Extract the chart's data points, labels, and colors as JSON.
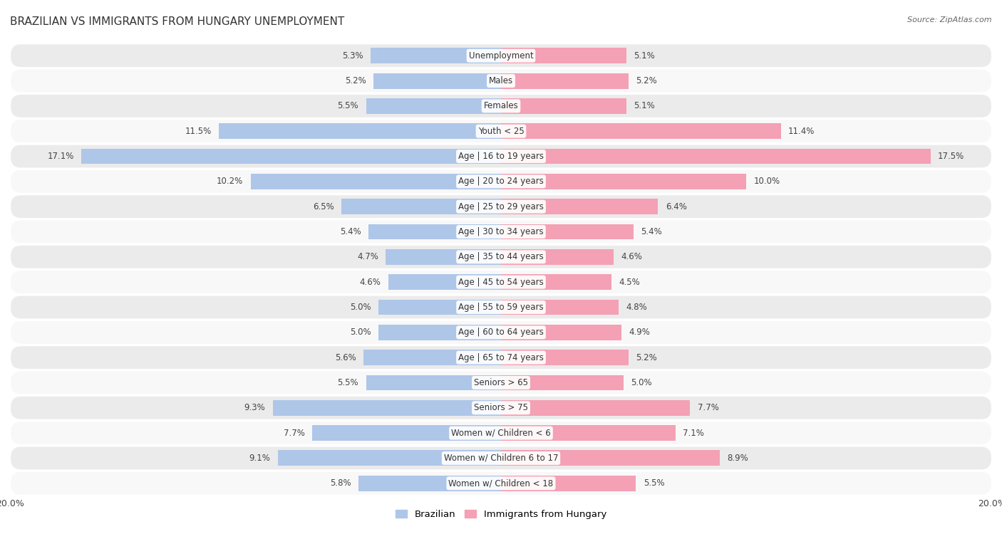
{
  "title": "Brazilian vs Immigrants from Hungary Unemployment",
  "source": "Source: ZipAtlas.com",
  "categories": [
    "Unemployment",
    "Males",
    "Females",
    "Youth < 25",
    "Age | 16 to 19 years",
    "Age | 20 to 24 years",
    "Age | 25 to 29 years",
    "Age | 30 to 34 years",
    "Age | 35 to 44 years",
    "Age | 45 to 54 years",
    "Age | 55 to 59 years",
    "Age | 60 to 64 years",
    "Age | 65 to 74 years",
    "Seniors > 65",
    "Seniors > 75",
    "Women w/ Children < 6",
    "Women w/ Children 6 to 17",
    "Women w/ Children < 18"
  ],
  "brazilian": [
    5.3,
    5.2,
    5.5,
    11.5,
    17.1,
    10.2,
    6.5,
    5.4,
    4.7,
    4.6,
    5.0,
    5.0,
    5.6,
    5.5,
    9.3,
    7.7,
    9.1,
    5.8
  ],
  "hungary": [
    5.1,
    5.2,
    5.1,
    11.4,
    17.5,
    10.0,
    6.4,
    5.4,
    4.6,
    4.5,
    4.8,
    4.9,
    5.2,
    5.0,
    7.7,
    7.1,
    8.9,
    5.5
  ],
  "max_val": 20.0,
  "blue_color": "#aec6e8",
  "pink_color": "#f4a0b5",
  "row_bg_odd": "#ebebeb",
  "row_bg_even": "#f8f8f8",
  "bar_height": 0.62,
  "legend_blue": "Brazilian",
  "legend_pink": "Immigrants from Hungary"
}
